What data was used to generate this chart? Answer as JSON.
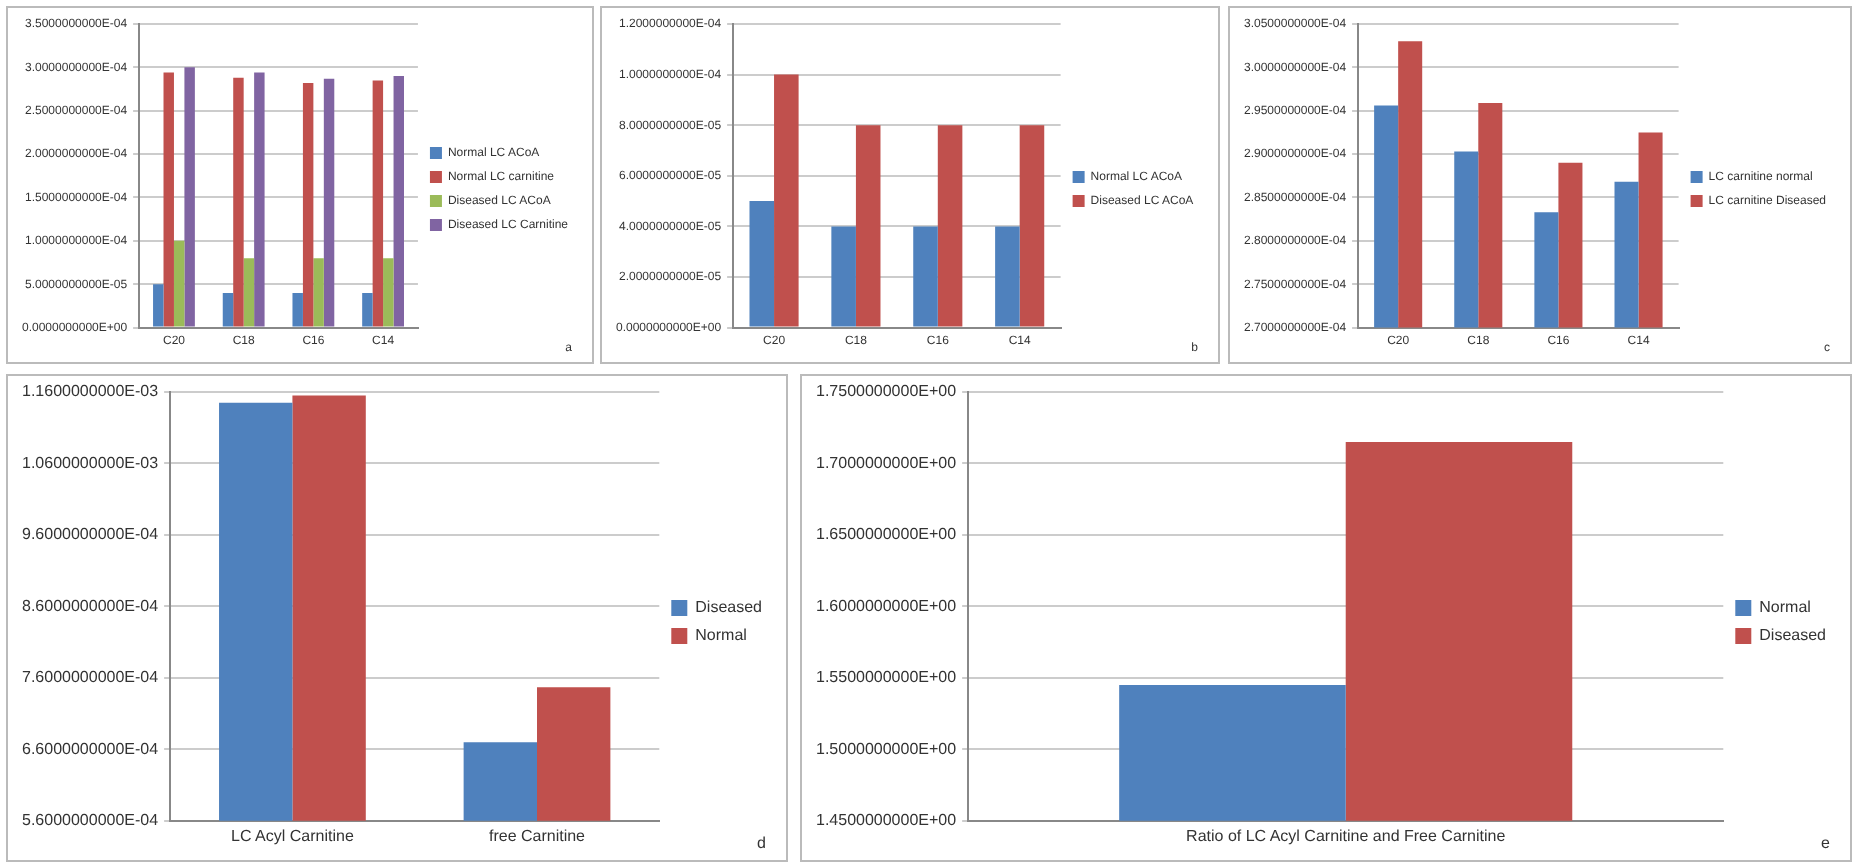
{
  "chart_data": [
    {
      "type": "bar",
      "categories": [
        "C20",
        "C18",
        "C16",
        "C14"
      ],
      "series": [
        {
          "name": "Normal LC ACoA",
          "color": "#4f81bd",
          "values": [
            5e-05,
            4e-05,
            4e-05,
            4e-05
          ]
        },
        {
          "name": "Normal LC carnitine",
          "color": "#c0504d",
          "values": [
            0.000294,
            0.000288,
            0.000282,
            0.000285
          ]
        },
        {
          "name": "Diseased LC ACoA",
          "color": "#9bbb59",
          "values": [
            0.0001,
            8e-05,
            8e-05,
            8e-05
          ]
        },
        {
          "name": "Diseased LC Carnitine",
          "color": "#8064a2",
          "values": [
            0.0003,
            0.000294,
            0.000287,
            0.00029
          ]
        }
      ],
      "ylim": [
        0,
        0.00035
      ],
      "yticks": [
        {
          "value": 0,
          "label": "0.0000000000E+00"
        },
        {
          "value": 5e-05,
          "label": "5.0000000000E-05"
        },
        {
          "value": 0.0001,
          "label": "1.0000000000E-04"
        },
        {
          "value": 0.00015,
          "label": "1.5000000000E-04"
        },
        {
          "value": 0.0002,
          "label": "2.0000000000E-04"
        },
        {
          "value": 0.00025,
          "label": "2.5000000000E-04"
        },
        {
          "value": 0.0003,
          "label": "3.0000000000E-04"
        },
        {
          "value": 0.00035,
          "label": "3.5000000000E-04"
        }
      ],
      "grid": "y",
      "legend": "right",
      "annotations": [
        "a"
      ]
    },
    {
      "type": "bar",
      "categories": [
        "C20",
        "C18",
        "C16",
        "C14"
      ],
      "series": [
        {
          "name": "Normal LC ACoA",
          "color": "#4f81bd",
          "values": [
            5e-05,
            4e-05,
            4e-05,
            4e-05
          ]
        },
        {
          "name": "Diseased LC ACoA",
          "color": "#c0504d",
          "values": [
            0.0001,
            8e-05,
            8e-05,
            8e-05
          ]
        }
      ],
      "ylim": [
        0,
        0.00012
      ],
      "yticks": [
        {
          "value": 0,
          "label": "0.0000000000E+00"
        },
        {
          "value": 2e-05,
          "label": "2.0000000000E-05"
        },
        {
          "value": 4e-05,
          "label": "4.0000000000E-05"
        },
        {
          "value": 6e-05,
          "label": "6.0000000000E-05"
        },
        {
          "value": 8e-05,
          "label": "8.0000000000E-05"
        },
        {
          "value": 0.0001,
          "label": "1.0000000000E-04"
        },
        {
          "value": 0.00012,
          "label": "1.2000000000E-04"
        }
      ],
      "grid": "y",
      "legend": "right",
      "annotations": [
        "b"
      ]
    },
    {
      "type": "bar",
      "categories": [
        "C20",
        "C18",
        "C16",
        "C14"
      ],
      "series": [
        {
          "name": "LC carnitine normal",
          "color": "#4f81bd",
          "values": [
            0.0002956,
            0.0002903,
            0.0002833,
            0.0002868
          ]
        },
        {
          "name": "LC carnitine Diseased",
          "color": "#c0504d",
          "values": [
            0.000303,
            0.0002959,
            0.000289,
            0.0002925
          ]
        }
      ],
      "ylim": [
        0.00027,
        0.000305
      ],
      "yticks": [
        {
          "value": 0.00027,
          "label": "2.7000000000E-04"
        },
        {
          "value": 0.000275,
          "label": "2.7500000000E-04"
        },
        {
          "value": 0.00028,
          "label": "2.8000000000E-04"
        },
        {
          "value": 0.000285,
          "label": "2.8500000000E-04"
        },
        {
          "value": 0.00029,
          "label": "2.9000000000E-04"
        },
        {
          "value": 0.000295,
          "label": "2.9500000000E-04"
        },
        {
          "value": 0.0003,
          "label": "3.0000000000E-04"
        },
        {
          "value": 0.000305,
          "label": "3.0500000000E-04"
        }
      ],
      "grid": "y",
      "legend": "right",
      "annotations": [
        "c"
      ]
    },
    {
      "type": "bar",
      "categories": [
        "LC Acyl Carnitine",
        "free Carnitine"
      ],
      "series": [
        {
          "name": "Diseased",
          "color": "#4f81bd",
          "values": [
            0.001145,
            0.00067
          ]
        },
        {
          "name": "Normal",
          "color": "#c0504d",
          "values": [
            0.001155,
            0.000747
          ]
        }
      ],
      "ylim": [
        0.00056,
        0.00116
      ],
      "yticks": [
        {
          "value": 0.00056,
          "label": "5.6000000000E-04"
        },
        {
          "value": 0.00066,
          "label": "6.6000000000E-04"
        },
        {
          "value": 0.00076,
          "label": "7.6000000000E-04"
        },
        {
          "value": 0.00086,
          "label": "8.6000000000E-04"
        },
        {
          "value": 0.00096,
          "label": "9.6000000000E-04"
        },
        {
          "value": 0.00106,
          "label": "1.0600000000E-03"
        },
        {
          "value": 0.00116,
          "label": "1.1600000000E-03"
        }
      ],
      "grid": "y",
      "legend": "right",
      "annotations": [
        "d"
      ]
    },
    {
      "type": "bar",
      "categories": [
        "Ratio of LC Acyl Carnitine and Free Carnitine"
      ],
      "series": [
        {
          "name": "Normal",
          "color": "#4f81bd",
          "values": [
            1.545
          ]
        },
        {
          "name": "Diseased",
          "color": "#c0504d",
          "values": [
            1.715
          ]
        }
      ],
      "ylim": [
        1.45,
        1.75
      ],
      "yticks": [
        {
          "value": 1.45,
          "label": "1.4500000000E+00"
        },
        {
          "value": 1.5,
          "label": "1.5000000000E+00"
        },
        {
          "value": 1.55,
          "label": "1.5500000000E+00"
        },
        {
          "value": 1.6,
          "label": "1.6000000000E+00"
        },
        {
          "value": 1.65,
          "label": "1.6500000000E+00"
        },
        {
          "value": 1.7,
          "label": "1.7000000000E+00"
        },
        {
          "value": 1.75,
          "label": "1.7500000000E+00"
        }
      ],
      "grid": "y",
      "legend": "right",
      "annotations": [
        "e"
      ]
    }
  ]
}
